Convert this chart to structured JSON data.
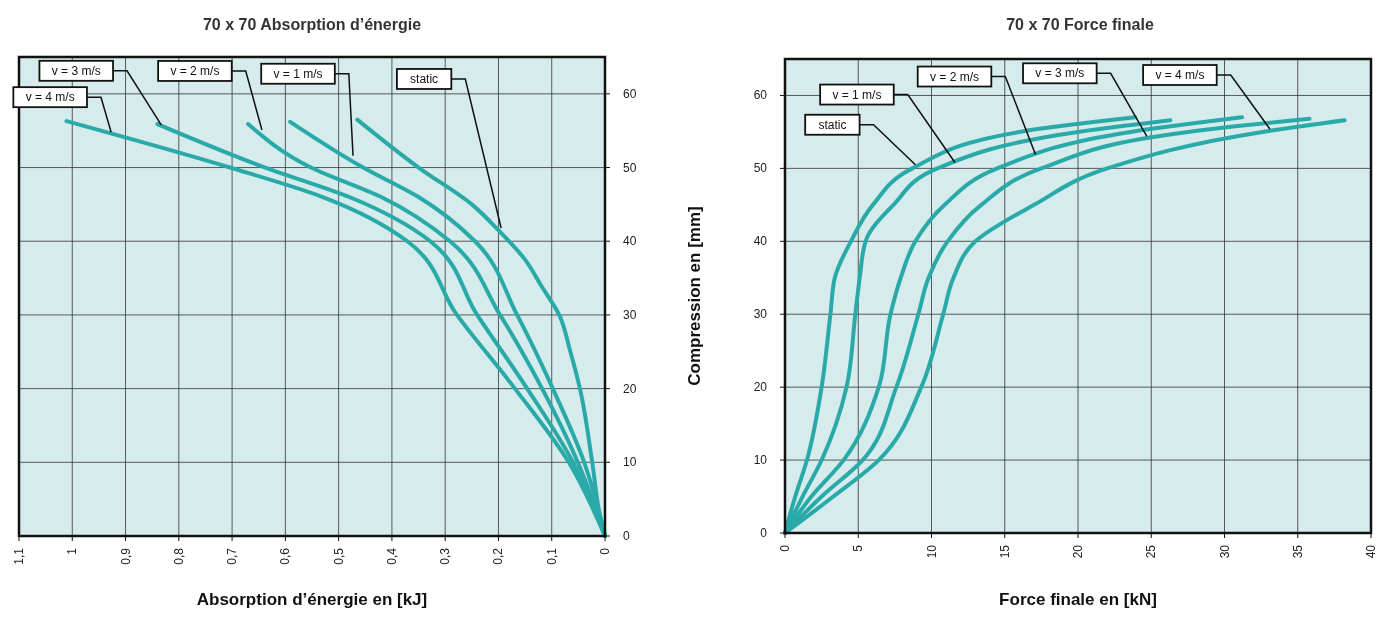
{
  "chart_data": [
    {
      "type": "line",
      "title": "70 x 70 Absorption d’énergie",
      "xlabel": "Absorption d’énergie en  [kJ]",
      "xlim": [
        1.1,
        0
      ],
      "ylim": [
        0,
        65
      ],
      "xticks": [
        {
          "value": 1.1,
          "label": "1,1"
        },
        1,
        {
          "value": 0.9,
          "label": "0,9"
        },
        {
          "value": 0.8,
          "label": "0,8"
        },
        {
          "value": 0.7,
          "label": "0,7"
        },
        {
          "value": 0.6,
          "label": "0,6"
        },
        {
          "value": 0.5,
          "label": "0,5"
        },
        {
          "value": 0.4,
          "label": "0,4"
        },
        {
          "value": 0.3,
          "label": "0,3"
        },
        {
          "value": 0.2,
          "label": "0,2"
        },
        {
          "value": 0.1,
          "label": "0,1"
        },
        0
      ],
      "yticks": [
        0,
        10,
        20,
        30,
        40,
        50,
        60
      ],
      "grid": true,
      "series": [
        {
          "color": "#2aa9a9",
          "x": [
            0,
            0.01,
            0.024,
            0.047,
            0.065,
            0.086,
            0.12,
            0.15,
            0.2,
            0.25,
            0.35,
            0.465
          ],
          "values": [
            0,
            3,
            10,
            20,
            25,
            30,
            34,
            37.5,
            41.5,
            45,
            50,
            56.5
          ]
        },
        {
          "color": "#2aa9a9",
          "x": [
            0,
            0.039,
            0.098,
            0.165,
            0.244,
            0.35,
            0.454,
            0.591
          ],
          "values": [
            0,
            10,
            20,
            30,
            40,
            46,
            50,
            56.2
          ]
        },
        {
          "color": "#2aa9a9",
          "x": [
            0,
            0.051,
            0.118,
            0.197,
            0.291,
            0.42,
            0.552,
            0.67
          ],
          "values": [
            0,
            10,
            20,
            30,
            40,
            46,
            50,
            55.9
          ]
        },
        {
          "color": "#2aa9a9",
          "x": [
            0,
            0.06,
            0.146,
            0.24,
            0.328,
            0.48,
            0.638,
            0.84
          ],
          "values": [
            0,
            10,
            20,
            30,
            40,
            46,
            50,
            55.9
          ]
        },
        {
          "color": "#2aa9a9",
          "x": [
            0,
            0.068,
            0.169,
            0.278,
            0.371,
            0.53,
            0.704,
            1.011
          ],
          "values": [
            0,
            10,
            20,
            30,
            40,
            46,
            50,
            56.3
          ]
        }
      ],
      "annotations": [
        {
          "text": "static",
          "x": 0.195,
          "y": 41.8
        },
        {
          "text": "v = 1 m/s",
          "x": 0.473,
          "y": 51.6
        },
        {
          "text": "v = 2 m/s",
          "x": 0.644,
          "y": 55.1
        },
        {
          "text": "v = 3 m/s",
          "x": 0.833,
          "y": 55.8
        },
        {
          "text": "v = 4 m/s",
          "x": 0.927,
          "y": 54.8
        }
      ]
    },
    {
      "type": "line",
      "title": "70 x 70 Force finale",
      "xlabel": "Force finale en  [kN]",
      "ylabel": "Compression en  [mm]",
      "xlim": [
        0,
        40
      ],
      "ylim": [
        0,
        65
      ],
      "xticks": [
        0,
        5,
        10,
        15,
        20,
        25,
        30,
        35,
        40
      ],
      "yticks": [
        0,
        10,
        20,
        30,
        40,
        50,
        60
      ],
      "grid": true,
      "series": [
        {
          "color": "#2aa9a9",
          "x": [
            0,
            0.7,
            1.5,
            2.5,
            3.1,
            3.4,
            4.5,
            6.0,
            8.7,
            16.0,
            23.9
          ],
          "values": [
            0,
            5,
            10,
            20,
            30,
            35,
            40,
            45,
            50,
            55,
            57
          ]
        },
        {
          "color": "#2aa9a9",
          "x": [
            0,
            1.2,
            2.5,
            4.2,
            4.8,
            5.1,
            5.5,
            7.4,
            10.4,
            20.0,
            26.3
          ],
          "values": [
            0,
            5,
            10,
            20,
            30,
            35,
            40,
            45,
            50,
            55,
            56.6
          ]
        },
        {
          "color": "#2aa9a9",
          "x": [
            0,
            1.8,
            4.0,
            6.4,
            7.2,
            7.9,
            8.9,
            10.9,
            14.5,
            23.6,
            31.2
          ],
          "values": [
            0,
            5,
            10,
            20,
            30,
            35,
            40,
            45,
            50,
            55,
            57
          ]
        },
        {
          "color": "#2aa9a9",
          "x": [
            0,
            2.5,
            5.3,
            7.6,
            9.1,
            9.8,
            11.1,
            13.4,
            17.5,
            27.5,
            35.8
          ],
          "values": [
            0,
            5,
            10,
            20,
            30,
            35,
            40,
            45,
            50,
            55,
            56.8
          ]
        },
        {
          "color": "#2aa9a9",
          "x": [
            0,
            3.3,
            6.4,
            9.3,
            10.8,
            11.5,
            13.0,
            17.0,
            22.0,
            32.6,
            38.2
          ],
          "values": [
            0,
            5,
            10,
            20,
            30,
            35,
            40,
            45,
            50,
            55,
            56.6
          ]
        }
      ],
      "annotations": [
        {
          "text": "static",
          "x": 8.9,
          "y": 50.5
        },
        {
          "text": "v = 1 m/s",
          "x": 11.6,
          "y": 50.8
        },
        {
          "text": "v = 2 m/s",
          "x": 17.1,
          "y": 51.9
        },
        {
          "text": "v = 3 m/s",
          "x": 24.7,
          "y": 54.4
        },
        {
          "text": "v = 4 m/s",
          "x": 33.1,
          "y": 55.4
        }
      ]
    }
  ]
}
